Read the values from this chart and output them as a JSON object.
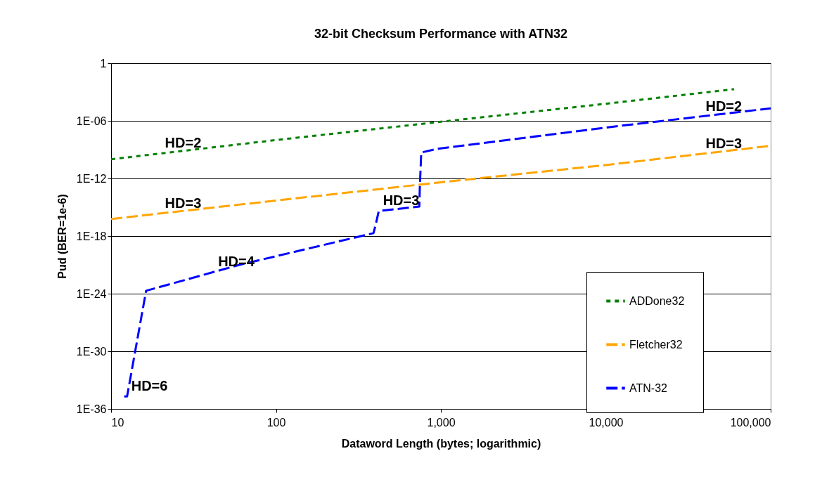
{
  "chart_data": {
    "type": "line",
    "title": "32-bit Checksum Performance with ATN32",
    "xlabel": "Dataword Length (bytes; logarithmic)",
    "ylabel": "Pud (BER=1e-6)",
    "log": "xy",
    "grid": "y",
    "legend": "right",
    "xlim": [
      10,
      100000
    ],
    "ylim": [
      1e-36,
      1
    ],
    "xticks": [
      10,
      100,
      {
        "value": 1000,
        "label": "1,000"
      },
      {
        "value": 10000,
        "label": "10,000"
      },
      {
        "value": 100000,
        "label": "100,000"
      }
    ],
    "yticks": [
      {
        "value": 1e-36,
        "label": "1E-36"
      },
      {
        "value": 1e-30,
        "label": "1E-30"
      },
      {
        "value": 1e-24,
        "label": "1E-24"
      },
      {
        "value": 1e-18,
        "label": "1E-18"
      },
      {
        "value": 1e-12,
        "label": "1E-12"
      },
      {
        "value": 1e-06,
        "label": "1E-06"
      },
      1
    ],
    "series": [
      {
        "name": "ADDone32",
        "color": "#008000",
        "line_style": "dotted",
        "x": [
          10,
          100,
          1000,
          10000,
          60000
        ],
        "values": [
          1e-10,
          1e-08,
          8e-07,
          6e-05,
          0.002
        ]
      },
      {
        "name": "Fletcher32",
        "color": "#ffa500",
        "line_style": "dashed",
        "x": [
          10,
          100,
          1000,
          10000,
          100000
        ],
        "values": [
          6e-17,
          5e-15,
          4e-13,
          2.5e-11,
          2.5e-09
        ]
      },
      {
        "name": "ATN-32",
        "color": "#0000ff",
        "line_style": "dashed",
        "x": [
          12,
          12.5,
          16.3,
          60,
          390,
          400,
          420,
          740,
          745,
          760,
          944,
          10000,
          100000
        ],
        "values": [
          2e-35,
          2e-35,
          2e-24,
          1e-21,
          2e-18,
          1e-17,
          4e-16,
          1.2e-15,
          1e-13,
          5e-10,
          1.2e-09,
          2e-07,
          2e-05
        ]
      }
    ],
    "annotations": [
      {
        "text": "HD=2",
        "x": 20,
        "y": 4e-10
      },
      {
        "text": "HD=2",
        "x": 38000,
        "y": 2.9e-06
      },
      {
        "text": "HD=3",
        "x": 20,
        "y": 2.3e-16
      },
      {
        "text": "HD=3",
        "x": 38000,
        "y": 3.6e-10
      },
      {
        "text": "HD=3",
        "x": 420,
        "y": 4e-16
      },
      {
        "text": "HD=4",
        "x": 42,
        "y": 1.8e-22
      },
      {
        "text": "HD=6",
        "x": 12.5,
        "y": 2e-35
      }
    ]
  }
}
